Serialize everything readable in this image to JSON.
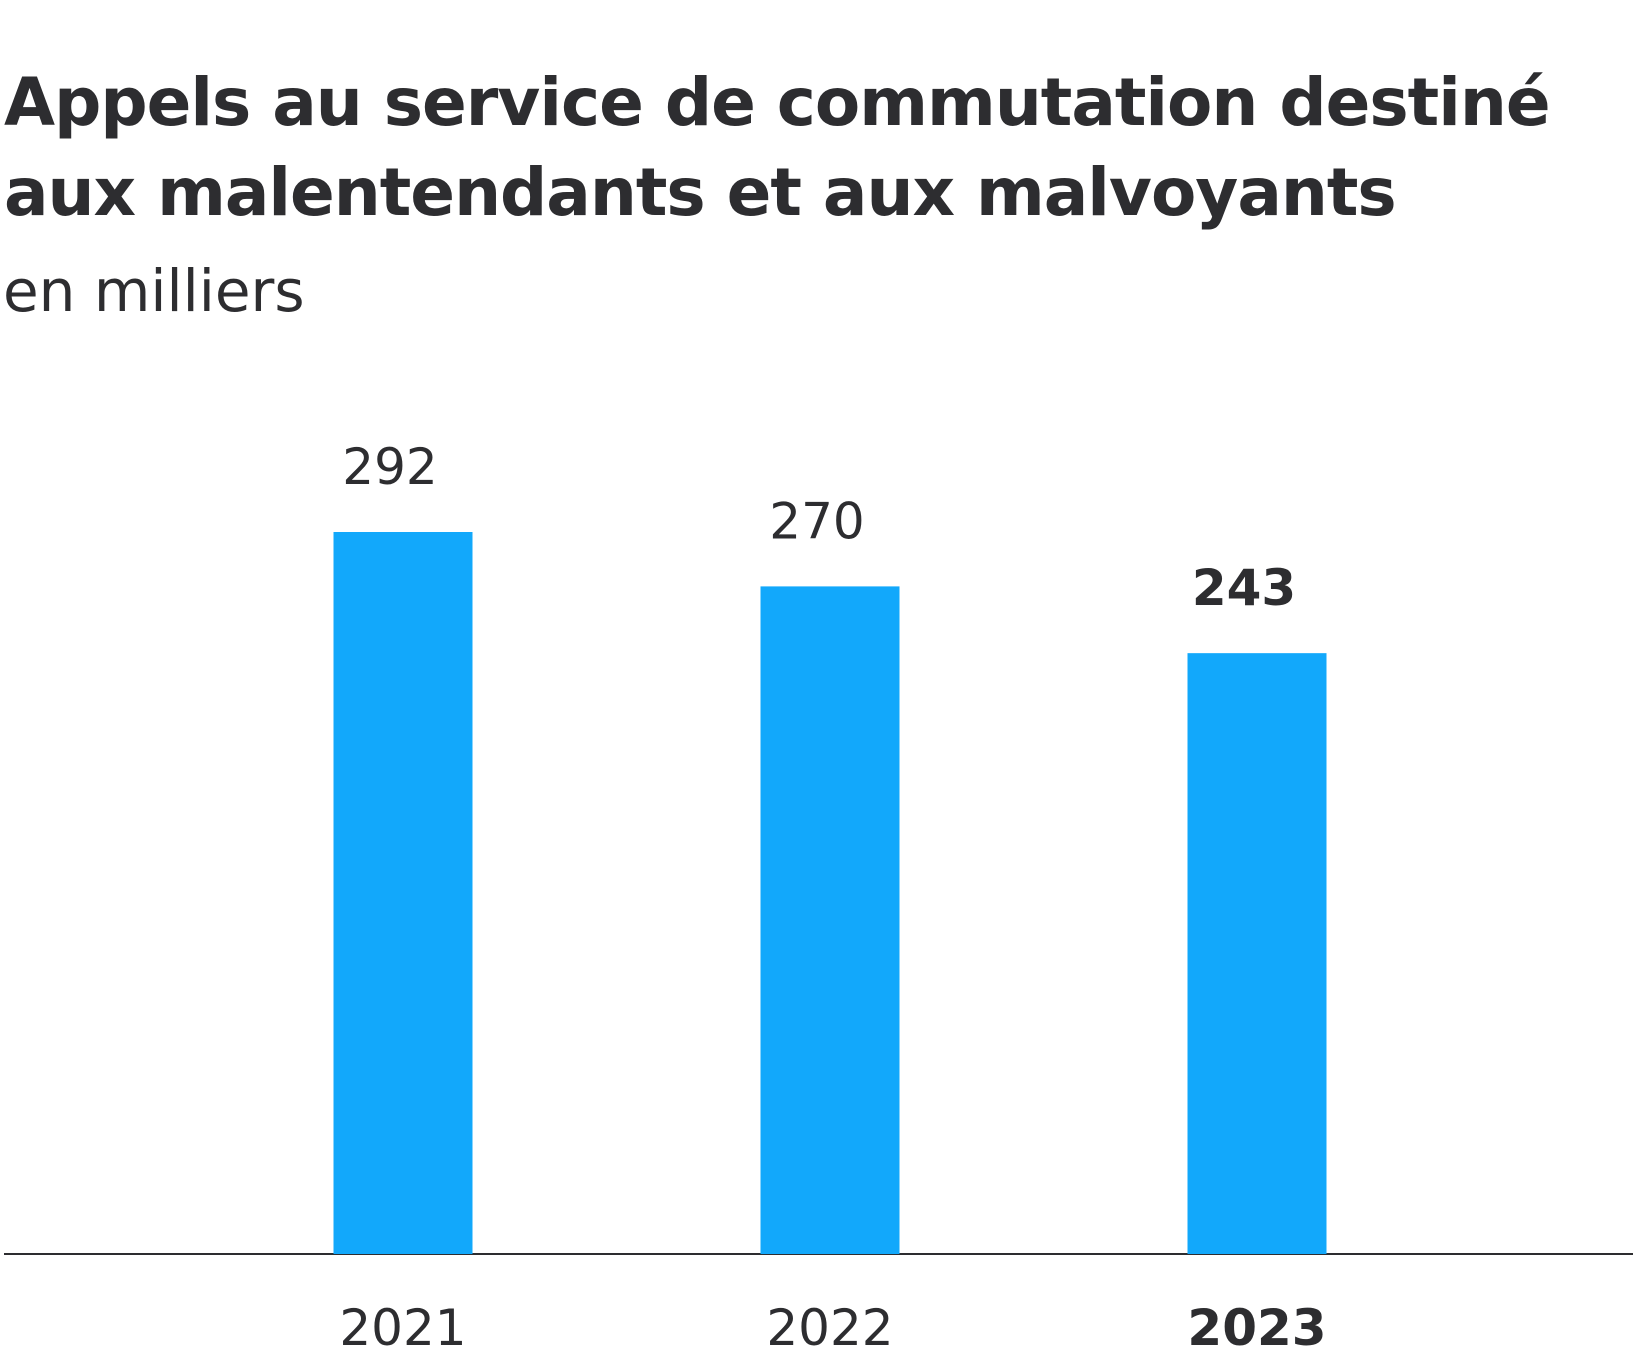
{
  "chart_data": {
    "type": "bar",
    "title_lines": [
      "Appels au service de commutation destiné",
      "aux malentendants et aux malvoyants"
    ],
    "subtitle": "en milliers",
    "categories": [
      "2021",
      "2022",
      "2023"
    ],
    "values": [
      292,
      270,
      243
    ],
    "value_labels": [
      "292",
      "270",
      "243"
    ],
    "highlighted_category": "2023",
    "bar_color": "#12a8fb",
    "axis_color": "#2d2d30",
    "text_color": "#2d2d30",
    "ylim": [
      0,
      292
    ],
    "grid": false,
    "legend": "none"
  }
}
